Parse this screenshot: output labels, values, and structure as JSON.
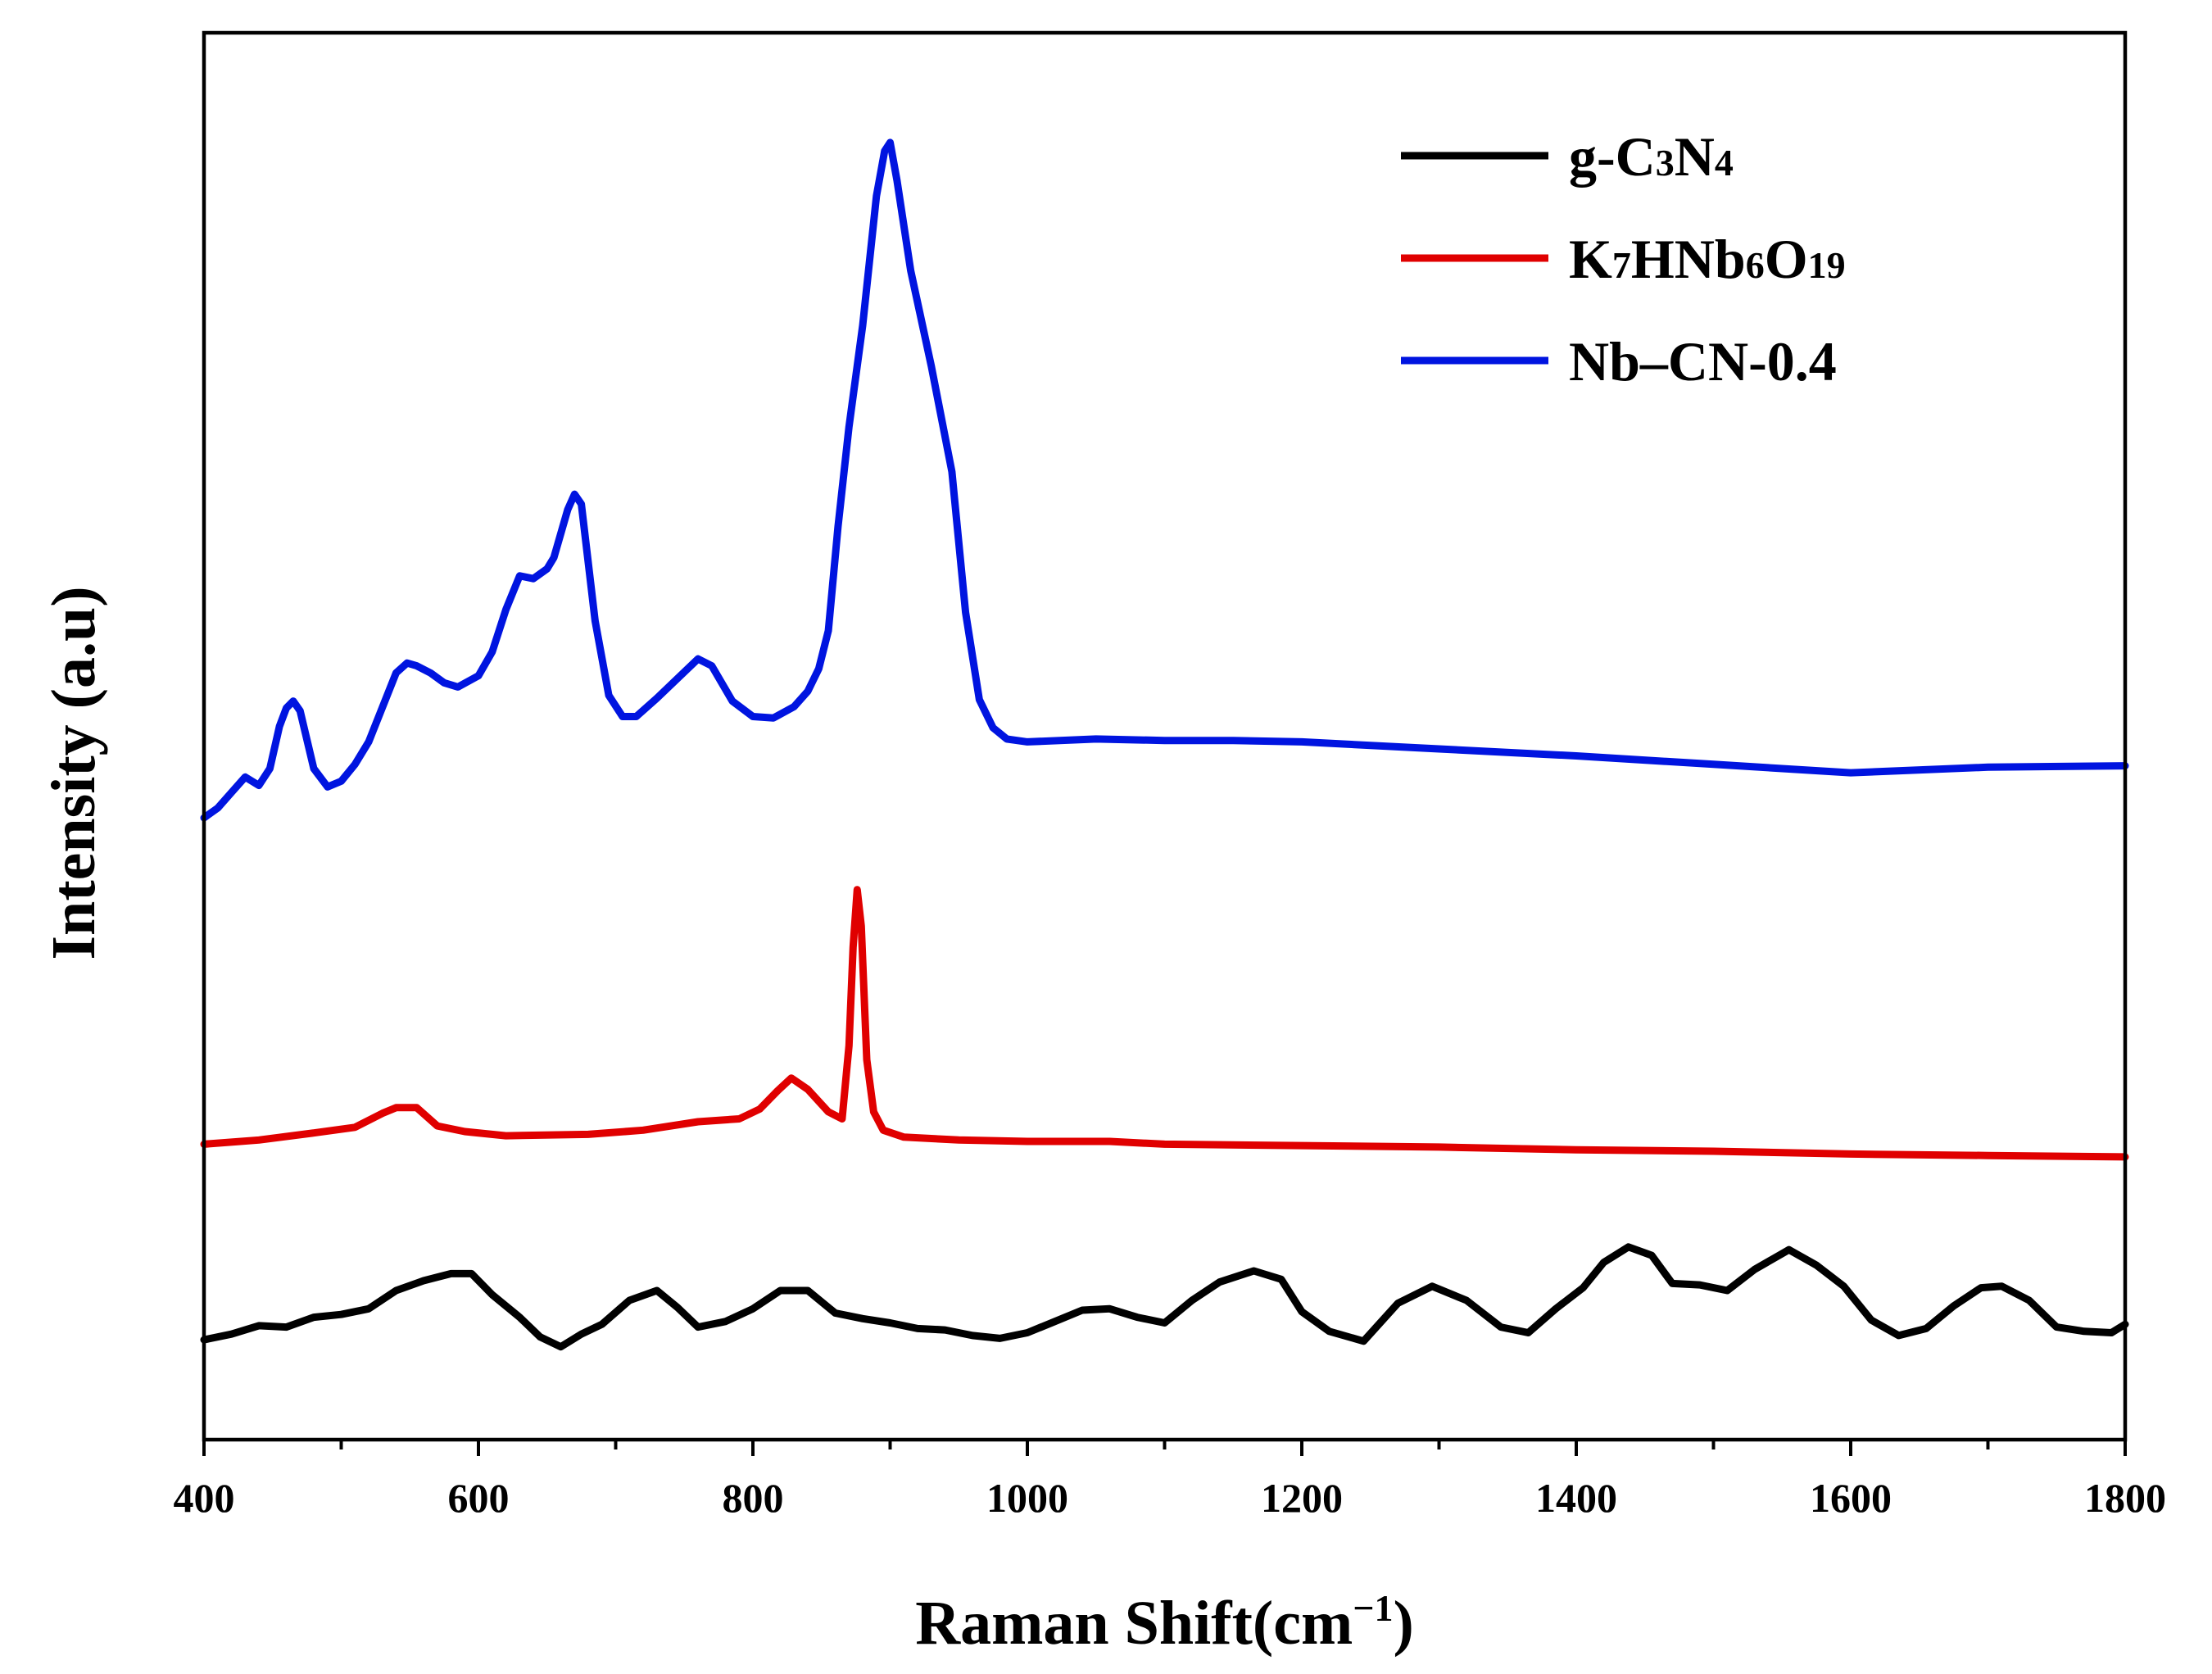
{
  "chart_data": {
    "type": "line",
    "title": "",
    "xlabel": "Raman Shift(cm",
    "xlabel_superscript": "−1",
    "xlabel_close": ")",
    "ylabel": "Intensity (a.u)",
    "xlim": [
      400,
      1800
    ],
    "ylim": [
      0,
      100
    ],
    "y_ticks_shown": false,
    "grid": false,
    "legend_position": "top-right",
    "x_ticks": [
      400,
      600,
      800,
      1000,
      1200,
      1400,
      1600,
      1800
    ],
    "x_tick_labels": [
      "400",
      "600",
      "800",
      "1000",
      "1200",
      "1400",
      "1600",
      "1800"
    ],
    "series": [
      {
        "name": "g-C3N4",
        "label_parts": [
          [
            "g-C",
            false
          ],
          [
            "3",
            true
          ],
          [
            "N",
            false
          ],
          [
            "4",
            true
          ]
        ],
        "color": "#000000",
        "x": [
          400,
          420,
          440,
          460,
          480,
          500,
          520,
          540,
          560,
          580,
          595,
          610,
          630,
          645,
          660,
          675,
          690,
          710,
          730,
          745,
          760,
          780,
          800,
          820,
          840,
          860,
          880,
          900,
          920,
          940,
          960,
          980,
          1000,
          1020,
          1040,
          1060,
          1080,
          1100,
          1120,
          1140,
          1165,
          1185,
          1200,
          1220,
          1245,
          1270,
          1295,
          1320,
          1345,
          1365,
          1385,
          1405,
          1420,
          1438,
          1455,
          1470,
          1490,
          1510,
          1530,
          1555,
          1575,
          1595,
          1615,
          1635,
          1655,
          1675,
          1695,
          1710,
          1730,
          1750,
          1770,
          1790,
          1800
        ],
        "y": [
          7.1,
          7.5,
          8.1,
          8.0,
          8.7,
          8.9,
          9.3,
          10.6,
          11.3,
          11.8,
          11.8,
          10.3,
          8.7,
          7.3,
          6.6,
          7.5,
          8.2,
          9.9,
          10.6,
          9.4,
          8.0,
          8.4,
          9.3,
          10.6,
          10.6,
          9.0,
          8.6,
          8.3,
          7.9,
          7.8,
          7.4,
          7.2,
          7.6,
          8.4,
          9.2,
          9.3,
          8.7,
          8.3,
          9.9,
          11.2,
          12.0,
          11.4,
          9.1,
          7.7,
          7.0,
          9.7,
          10.9,
          9.9,
          8.0,
          7.6,
          9.3,
          10.8,
          12.6,
          13.7,
          13.1,
          11.1,
          11.0,
          10.6,
          12.1,
          13.5,
          12.4,
          10.9,
          8.5,
          7.4,
          7.9,
          9.5,
          10.8,
          10.9,
          9.9,
          8.0,
          7.7,
          7.6,
          8.2
        ]
      },
      {
        "name": "K7HNb6O19",
        "label_parts": [
          [
            "K",
            false
          ],
          [
            "7",
            true
          ],
          [
            "HNb",
            false
          ],
          [
            "6",
            true
          ],
          [
            "O",
            false
          ],
          [
            "19",
            true
          ]
        ],
        "color": "#e00000",
        "x": [
          400,
          440,
          480,
          510,
          530,
          540,
          555,
          570,
          590,
          620,
          680,
          720,
          760,
          790,
          805,
          818,
          828,
          840,
          855,
          865,
          870,
          873,
          876,
          879,
          883,
          888,
          895,
          910,
          950,
          1000,
          1060,
          1100,
          1200,
          1300,
          1400,
          1500,
          1600,
          1700,
          1800
        ],
        "y": [
          21.0,
          21.3,
          21.8,
          22.2,
          23.2,
          23.6,
          23.6,
          22.3,
          21.9,
          21.6,
          21.7,
          22.0,
          22.6,
          22.8,
          23.5,
          24.8,
          25.7,
          24.9,
          23.3,
          22.8,
          28.0,
          35.0,
          39.1,
          36.5,
          27.0,
          23.3,
          22.0,
          21.5,
          21.3,
          21.2,
          21.2,
          21.0,
          20.9,
          20.8,
          20.6,
          20.5,
          20.3,
          20.2,
          20.1
        ]
      },
      {
        "name": "Nb–CN-0.4",
        "label_parts": [
          [
            "Nb–CN-0.4",
            false
          ]
        ],
        "color": "#0014e0",
        "x": [
          400,
          410,
          420,
          430,
          440,
          448,
          455,
          460,
          465,
          470,
          480,
          490,
          500,
          510,
          520,
          540,
          548,
          555,
          565,
          575,
          585,
          600,
          610,
          620,
          630,
          640,
          650,
          655,
          665,
          670,
          675,
          685,
          695,
          705,
          715,
          730,
          745,
          760,
          770,
          785,
          800,
          815,
          830,
          840,
          848,
          855,
          862,
          870,
          880,
          890,
          896,
          900,
          905,
          915,
          930,
          945,
          955,
          965,
          975,
          985,
          1000,
          1050,
          1100,
          1150,
          1200,
          1300,
          1400,
          1500,
          1600,
          1700,
          1800
        ],
        "y": [
          44.2,
          44.9,
          46.0,
          47.1,
          46.5,
          47.7,
          50.7,
          52.0,
          52.5,
          51.8,
          47.7,
          46.4,
          46.8,
          48.0,
          49.6,
          54.5,
          55.2,
          55.0,
          54.5,
          53.8,
          53.5,
          54.3,
          56.0,
          59.0,
          61.4,
          61.2,
          61.9,
          62.7,
          66.1,
          67.2,
          66.5,
          58.2,
          52.9,
          51.4,
          51.4,
          52.7,
          54.1,
          55.5,
          55.0,
          52.5,
          51.4,
          51.3,
          52.1,
          53.2,
          54.8,
          57.5,
          64.9,
          72.0,
          79.2,
          88.4,
          91.6,
          92.2,
          89.5,
          83.1,
          76.3,
          68.8,
          58.8,
          52.6,
          50.6,
          49.8,
          49.6,
          49.8,
          49.7,
          49.7,
          49.6,
          49.1,
          48.6,
          48.0,
          47.4,
          47.8,
          47.9
        ]
      }
    ]
  }
}
